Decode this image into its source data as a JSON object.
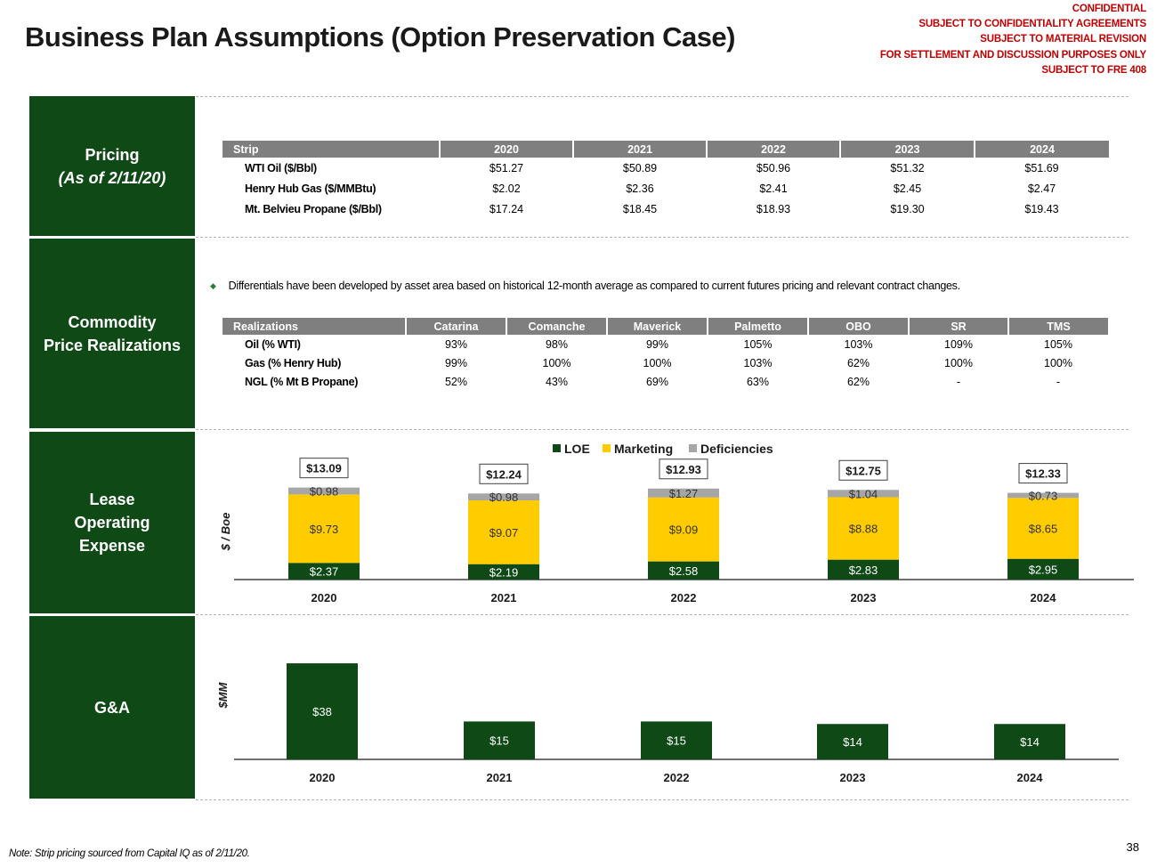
{
  "title": "Business Plan Assumptions (Option Preservation Case)",
  "confidential": [
    "CONFIDENTIAL",
    "SUBJECT TO CONFIDENTIALITY AGREEMENTS",
    "SUBJECT TO MATERIAL REVISION",
    "FOR SETTLEMENT AND DISCUSSION PURPOSES ONLY",
    "SUBJECT TO FRE 408"
  ],
  "sections": {
    "pricing": {
      "line1": "Pricing",
      "line2": "(As of 2/11/20)"
    },
    "realizations": {
      "line1": "Commodity",
      "line2": "Price Realizations"
    },
    "loe": {
      "line1": "Lease",
      "line2": "Operating",
      "line3": "Expense"
    },
    "gna": {
      "line1": "G&A"
    }
  },
  "pricing_table": {
    "headers": [
      "Strip",
      "2020",
      "2021",
      "2022",
      "2023",
      "2024"
    ],
    "rows": [
      [
        "WTI Oil ($/Bbl)",
        "$51.27",
        "$50.89",
        "$50.96",
        "$51.32",
        "$51.69"
      ],
      [
        "Henry Hub Gas ($/MMBtu)",
        "$2.02",
        "$2.36",
        "$2.41",
        "$2.45",
        "$2.47"
      ],
      [
        "Mt. Belvieu Propane ($/Bbl)",
        "$17.24",
        "$18.45",
        "$18.93",
        "$19.30",
        "$19.43"
      ]
    ]
  },
  "bullet": "Differentials have been developed by asset area based on historical 12-month average as compared to current futures pricing and relevant contract changes.",
  "realization_table": {
    "headers": [
      "Realizations",
      "Catarina",
      "Comanche",
      "Maverick",
      "Palmetto",
      "OBO",
      "SR",
      "TMS"
    ],
    "rows": [
      [
        "Oil (% WTI)",
        "93%",
        "98%",
        "99%",
        "105%",
        "103%",
        "109%",
        "105%"
      ],
      [
        "Gas (% Henry Hub)",
        "99%",
        "100%",
        "100%",
        "103%",
        "62%",
        "100%",
        "100%"
      ],
      [
        "NGL (% Mt B Propane)",
        "52%",
        "43%",
        "69%",
        "63%",
        "62%",
        "-",
        "-"
      ]
    ]
  },
  "note": "Note: Strip pricing sourced from Capital IQ as of 2/11/20.",
  "page_number": "38",
  "chart_data": [
    {
      "type": "bar",
      "stacked": true,
      "title": "",
      "ylabel": "$ / Boe",
      "categories": [
        "2020",
        "2021",
        "2022",
        "2023",
        "2024"
      ],
      "series": [
        {
          "name": "LOE",
          "color": "#0f4a16",
          "values": [
            2.37,
            2.19,
            2.58,
            2.83,
            2.95
          ],
          "labels": [
            "$2.37",
            "$2.19",
            "$2.58",
            "$2.83",
            "$2.95"
          ]
        },
        {
          "name": "Marketing",
          "color": "#ffcc00",
          "values": [
            9.73,
            9.07,
            9.09,
            8.88,
            8.65
          ],
          "labels": [
            "$9.73",
            "$9.07",
            "$9.09",
            "$8.88",
            "$8.65"
          ]
        },
        {
          "name": "Deficiencies",
          "color": "#a6a6a6",
          "values": [
            0.98,
            0.98,
            1.27,
            1.04,
            0.73
          ],
          "labels": [
            "$0.98",
            "$0.98",
            "$1.27",
            "$1.04",
            "$0.73"
          ]
        }
      ],
      "totals": [
        "$13.09",
        "$12.24",
        "$12.93",
        "$12.75",
        "$12.33"
      ],
      "legend": "top-center"
    },
    {
      "type": "bar",
      "title": "",
      "ylabel": "$MM",
      "categories": [
        "2020",
        "2021",
        "2022",
        "2023",
        "2024"
      ],
      "color": "#0f4a16",
      "values": [
        38,
        15,
        15,
        14,
        14
      ],
      "labels": [
        "$38",
        "$15",
        "$15",
        "$14",
        "$14"
      ]
    }
  ]
}
